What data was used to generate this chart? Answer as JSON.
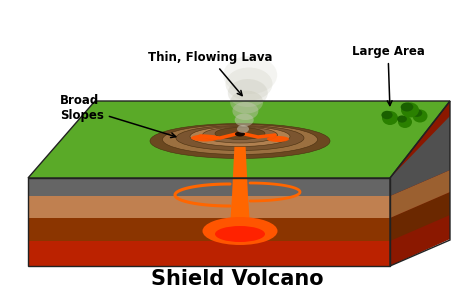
{
  "title": "Shield Volcano",
  "labels": {
    "thin_flowing_lava": "Thin, Flowing Lava",
    "large_area": "Large Area",
    "broad_slopes": "Broad\nSlopes"
  },
  "colors": {
    "background": "#ffffff",
    "green_surface": "#5aaa28",
    "green_dark": "#3a8010",
    "brown_volcano": "#A07840",
    "brown_mid": "#8B6530",
    "brown_dark": "#6B4A20",
    "brown_tan": "#C09060",
    "lava_orange": "#FF6600",
    "lava_bright": "#FF8800",
    "lava_red": "#DD2200",
    "rock_gray": "#606060",
    "rock_dark": "#404040",
    "earth_red_top": "#CC3300",
    "earth_red_mid": "#AA2000",
    "earth_red_bot": "#881800",
    "earth_brown": "#8B4000",
    "earth_tan": "#C08050",
    "earth_gray": "#707070",
    "smoke_light": "#D8D8C8",
    "tree_green": "#2a7a00",
    "tree_dark": "#1a5500",
    "magma_bright": "#FF2200",
    "magma_dark": "#CC0000"
  },
  "figsize": [
    4.74,
    2.96
  ],
  "dpi": 100
}
